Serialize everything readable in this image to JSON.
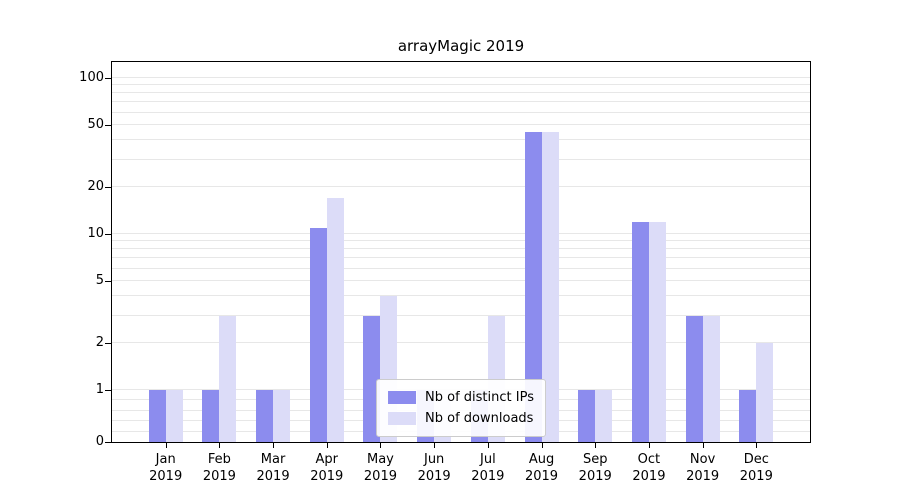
{
  "chart_data": {
    "type": "bar",
    "title": "arrayMagic 2019",
    "categories": [
      "Jan 2019",
      "Feb 2019",
      "Mar 2019",
      "Apr 2019",
      "May 2019",
      "Jun 2019",
      "Jul 2019",
      "Aug 2019",
      "Sep 2019",
      "Oct 2019",
      "Nov 2019",
      "Dec 2019"
    ],
    "series": [
      {
        "name": "Nb of distinct IPs",
        "color": "#8c8cee",
        "values": [
          1,
          1,
          1,
          11,
          3,
          1,
          1,
          45,
          1,
          12,
          3,
          1
        ]
      },
      {
        "name": "Nb of downloads",
        "color": "#dcdcf8",
        "values": [
          1,
          3,
          1,
          17,
          4,
          1,
          3,
          45,
          1,
          12,
          3,
          2
        ]
      }
    ],
    "yticks": [
      0,
      1,
      2,
      5,
      10,
      20,
      50,
      100
    ],
    "yscale": "symlog",
    "ylim": [
      0,
      127
    ],
    "xlabel": "",
    "ylabel": "",
    "grid": true,
    "legend_position": "lower center"
  }
}
